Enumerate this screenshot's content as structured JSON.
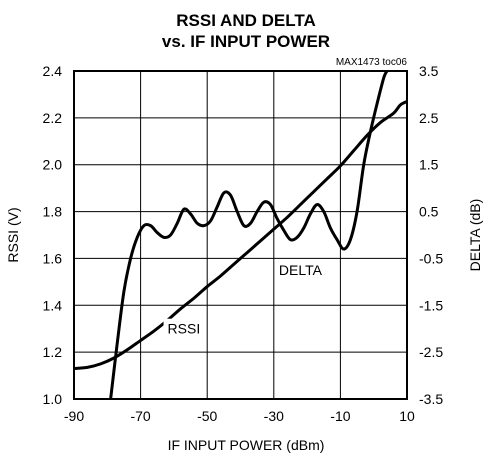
{
  "chart_data": {
    "type": "line",
    "title_line1": "RSSI AND DELTA",
    "title_line2": "vs. IF INPUT POWER",
    "part_note": "MAX1473 toc06",
    "xlabel": "IF INPUT POWER (dBm)",
    "ylabel_left": "RSSI (V)",
    "ylabel_right": "DELTA (dB)",
    "xlim": [
      -90,
      10
    ],
    "ylim_left": [
      1.0,
      2.4
    ],
    "ylim_right": [
      -3.5,
      3.5
    ],
    "x_tick_values": [
      -90,
      -70,
      -50,
      -30,
      -10,
      10
    ],
    "x_ticks": [
      "-90",
      "-70",
      "-50",
      "-30",
      "-10",
      "10"
    ],
    "y_left_tick_values": [
      1.0,
      1.2,
      1.4,
      1.6,
      1.8,
      2.0,
      2.2,
      2.4
    ],
    "y_left_ticks": [
      "1.0",
      "1.2",
      "1.4",
      "1.6",
      "1.8",
      "2.0",
      "2.2",
      "2.4"
    ],
    "y_right_tick_values": [
      -3.5,
      -2.5,
      -1.5,
      -0.5,
      0.5,
      1.5,
      2.5,
      3.5
    ],
    "y_right_ticks": [
      "-3.5",
      "-2.5",
      "-1.5",
      "-0.5",
      "0.5",
      "1.5",
      "2.5",
      "3.5"
    ],
    "grid": true,
    "series": [
      {
        "name": "RSSI",
        "axis": "left",
        "x": [
          -90,
          -86,
          -82,
          -78,
          -74,
          -70,
          -66,
          -62,
          -58,
          -54,
          -50,
          -46,
          -42,
          -38,
          -34,
          -30,
          -26,
          -22,
          -18,
          -14,
          -10,
          -6,
          -2,
          2,
          6,
          8,
          10
        ],
        "y": [
          1.13,
          1.135,
          1.15,
          1.175,
          1.21,
          1.25,
          1.29,
          1.335,
          1.385,
          1.43,
          1.48,
          1.525,
          1.575,
          1.625,
          1.675,
          1.725,
          1.775,
          1.83,
          1.885,
          1.94,
          1.995,
          2.06,
          2.125,
          2.18,
          2.22,
          2.255,
          2.27
        ],
        "color": "#000000"
      },
      {
        "name": "DELTA",
        "axis": "right",
        "x": [
          -79,
          -77,
          -75,
          -73,
          -71,
          -69,
          -67,
          -65,
          -63,
          -61,
          -59,
          -57,
          -55,
          -53,
          -51,
          -49,
          -47,
          -45,
          -43,
          -41,
          -39,
          -37,
          -35,
          -33,
          -31,
          -29,
          -27,
          -25,
          -23,
          -21,
          -19,
          -17,
          -15,
          -13,
          -11,
          -9,
          -7,
          -5,
          -3,
          -1,
          1,
          3,
          4
        ],
        "y": [
          -3.5,
          -2.3,
          -1.2,
          -0.5,
          -0.05,
          0.2,
          0.2,
          0.05,
          -0.05,
          0.0,
          0.25,
          0.55,
          0.45,
          0.25,
          0.2,
          0.3,
          0.6,
          0.9,
          0.85,
          0.5,
          0.2,
          0.25,
          0.5,
          0.7,
          0.65,
          0.35,
          0.1,
          -0.1,
          -0.05,
          0.15,
          0.45,
          0.65,
          0.5,
          0.15,
          -0.1,
          -0.3,
          -0.1,
          0.5,
          1.5,
          2.2,
          2.8,
          3.35,
          3.5
        ],
        "color": "#000000"
      }
    ],
    "annotations": [
      {
        "text": "DELTA",
        "x": -22,
        "y_right": -0.75
      },
      {
        "text": "RSSI",
        "x": -57,
        "y_left": 1.3
      }
    ]
  }
}
